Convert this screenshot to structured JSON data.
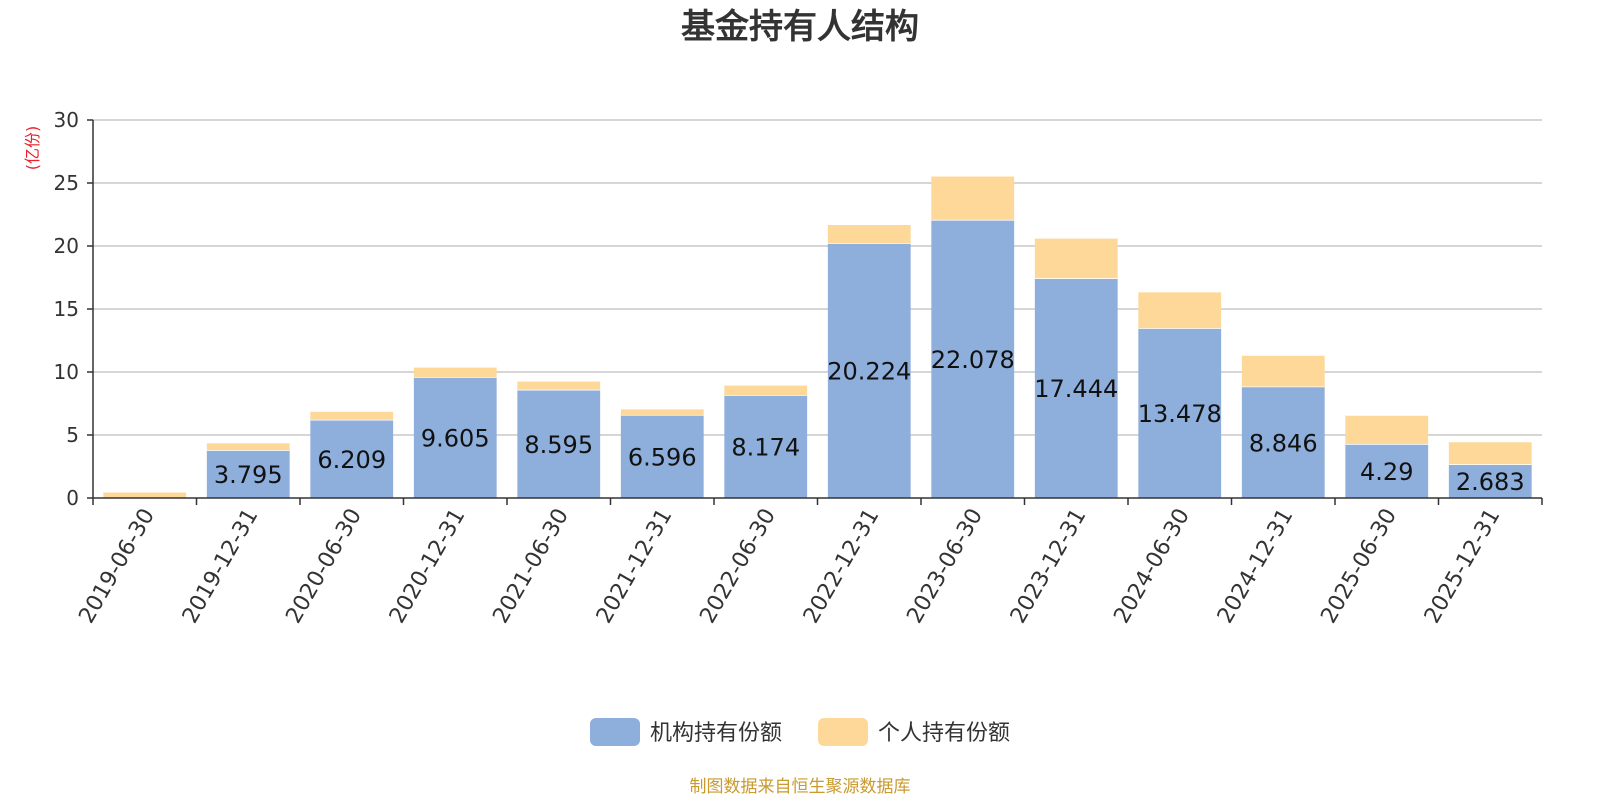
{
  "chart_data": {
    "type": "bar",
    "stacked": true,
    "title": "基金持有人结构",
    "ylabel": "(亿份)",
    "ylim": [
      0,
      30
    ],
    "yticks": [
      0,
      5,
      10,
      15,
      20,
      25,
      30
    ],
    "grid": true,
    "legend_position": "bottom",
    "categories": [
      "2019-06-30",
      "2019-12-31",
      "2020-06-30",
      "2020-12-31",
      "2021-06-30",
      "2021-12-31",
      "2022-06-30",
      "2022-12-31",
      "2023-06-30",
      "2023-12-31",
      "2024-06-30",
      "2024-12-31",
      "2025-06-30",
      "2025-12-31"
    ],
    "series": [
      {
        "name": "机构持有份额",
        "color": "#8eaedb",
        "values": [
          0,
          3.795,
          6.209,
          9.605,
          8.595,
          6.596,
          8.174,
          20.224,
          22.078,
          17.444,
          13.478,
          8.846,
          4.29,
          2.683
        ],
        "labels": [
          "",
          "3.795",
          "6.209",
          "9.605",
          "8.595",
          "6.596",
          "8.174",
          "20.224",
          "22.078",
          "17.444",
          "13.478",
          "8.846",
          "4.29",
          "2.683"
        ]
      },
      {
        "name": "个人持有份额",
        "color": "#fdd898",
        "values": [
          0.5,
          0.6,
          0.7,
          0.8,
          0.7,
          0.5,
          0.8,
          1.5,
          3.5,
          3.2,
          2.9,
          2.5,
          2.3,
          1.8
        ]
      }
    ],
    "unit_color": "#e8212a",
    "source": "制图数据来自恒生聚源数据库",
    "source_color": "#c99a2e"
  }
}
